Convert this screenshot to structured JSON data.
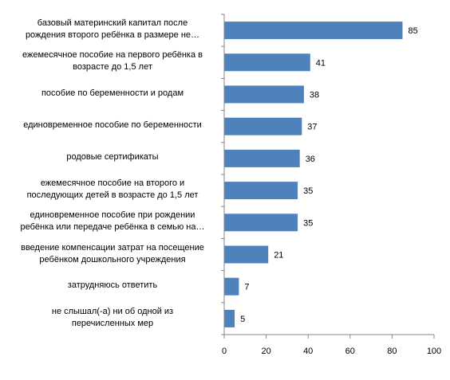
{
  "chart_data": {
    "type": "bar",
    "orientation": "horizontal",
    "categories": [
      "базовый материнский капитал  после\nрождения второго ребёнка в размере не…",
      "ежемесячное пособие на первого ребёнка в\nвозрасте до 1,5 лет",
      "пособие по беременности и родам",
      "единовременное пособие по беременности",
      "родовые сертификаты",
      "ежемесячное пособие на второго и\nпоследующих детей в возрасте до 1,5 лет",
      "единовременное пособие при рождении\nребёнка или передаче ребёнка в семью на…",
      "введение компенсации затрат на посещение\nребёнком дошкольного учреждения",
      "затрудняюсь ответить",
      "не слышал(-а) ни об одной из\nперечисленных мер"
    ],
    "values": [
      85,
      41,
      38,
      37,
      36,
      35,
      35,
      21,
      7,
      5
    ],
    "data_labels": [
      "85",
      "41",
      "38",
      "37",
      "36",
      "35",
      "35",
      "21",
      "7",
      "5"
    ],
    "xlim": [
      0,
      100
    ],
    "xticks": [
      "0",
      "20",
      "40",
      "60",
      "80",
      "100"
    ],
    "bar_color": "#4F81BD",
    "grid": false,
    "legend": "none"
  }
}
